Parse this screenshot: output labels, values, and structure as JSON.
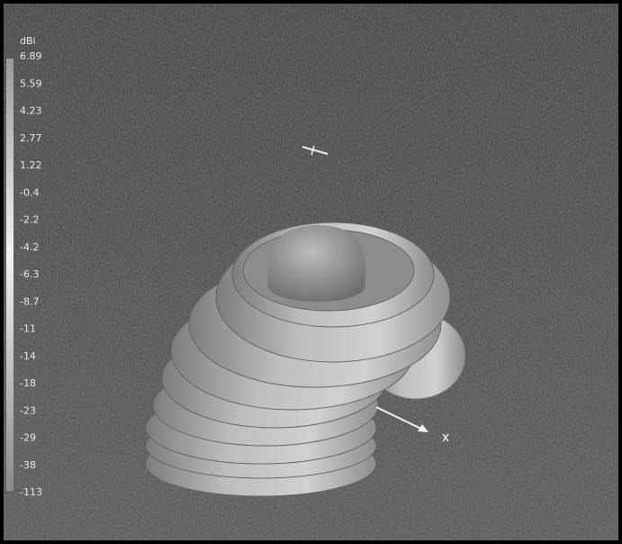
{
  "colorbar": {
    "unit": "dBi",
    "labels": [
      "6.89",
      "5.59",
      "4.23",
      "2.77",
      "1.22",
      "-0.4",
      "-2.2",
      "-4.2",
      "-6.3",
      "-8.7",
      "-11",
      "-14",
      "-18",
      "-23",
      "-29",
      "-38",
      "-113"
    ]
  },
  "axis_label": "x"
}
